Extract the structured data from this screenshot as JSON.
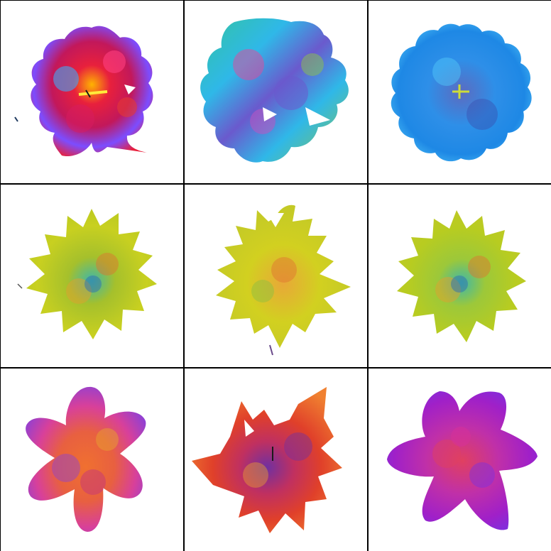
{
  "grid": {
    "rows": 3,
    "columns": 3,
    "border_color": "#000000",
    "background_color": "#ffffff"
  },
  "tiles": [
    {
      "row": 1,
      "col": 1,
      "subject": "flower",
      "shape": "ruffled-round",
      "palette": [
        "#e8203c",
        "#c2185b",
        "#3fa9f5",
        "#7c4dff",
        "#ffb300"
      ]
    },
    {
      "row": 1,
      "col": 2,
      "subject": "flower",
      "shape": "large-lobed",
      "palette": [
        "#2fb8e8",
        "#33c4a0",
        "#6a5acd",
        "#d94fa0",
        "#8bc34a"
      ]
    },
    {
      "row": 1,
      "col": 3,
      "subject": "flower",
      "shape": "scalloped-round",
      "palette": [
        "#2e8fe8",
        "#1e6fd9",
        "#4fc3f7",
        "#5c6bc0"
      ]
    },
    {
      "row": 2,
      "col": 1,
      "subject": "flower",
      "shape": "spiky-star",
      "palette": [
        "#c8d020",
        "#a5c02c",
        "#e0a030",
        "#3fb8a8"
      ]
    },
    {
      "row": 2,
      "col": 2,
      "subject": "flower",
      "shape": "maple-leaf",
      "palette": [
        "#d2d020",
        "#c0c828",
        "#e8a838",
        "#90c040"
      ]
    },
    {
      "row": 2,
      "col": 3,
      "subject": "flower",
      "shape": "spiky-star",
      "palette": [
        "#b8cc20",
        "#9cc83a",
        "#e0a030",
        "#3fb8a8"
      ]
    },
    {
      "row": 3,
      "col": 1,
      "subject": "flower",
      "shape": "five-petal",
      "palette": [
        "#d8409a",
        "#e86040",
        "#8a40d8",
        "#f07030"
      ]
    },
    {
      "row": 3,
      "col": 2,
      "subject": "flower",
      "shape": "jagged-star",
      "palette": [
        "#e0402a",
        "#f08030",
        "#c03060",
        "#7030a0"
      ]
    },
    {
      "row": 3,
      "col": 3,
      "subject": "flower",
      "shape": "rounded-star",
      "palette": [
        "#c030a8",
        "#a020c8",
        "#e04060",
        "#7a30e0"
      ]
    }
  ]
}
